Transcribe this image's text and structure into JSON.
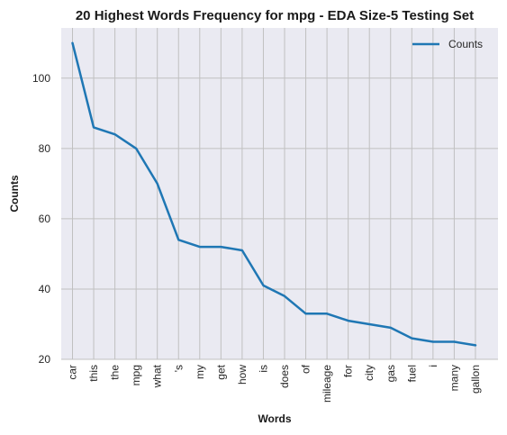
{
  "chart_data": {
    "type": "line",
    "title": "20 Highest Words Frequency for mpg - EDA Size-5 Testing Set",
    "xlabel": "Words",
    "ylabel": "Counts",
    "categories": [
      "car",
      "this",
      "the",
      "mpg",
      "what",
      "'s",
      "my",
      "get",
      "how",
      "is",
      "does",
      "of",
      "mileage",
      "for",
      "city",
      "gas",
      "fuel",
      "i",
      "many",
      "gallon"
    ],
    "series": [
      {
        "name": "Counts",
        "values": [
          110,
          86,
          84,
          80,
          70,
          54,
          52,
          52,
          51,
          41,
          38,
          33,
          33,
          31,
          30,
          29,
          26,
          25,
          25,
          24
        ]
      }
    ],
    "ylim": [
      20,
      114.3
    ],
    "yticks": [
      20,
      40,
      60,
      80,
      100
    ],
    "grid": true,
    "legend_position": "top-right",
    "colors": {
      "line": "#1f77b4",
      "background": "#eaeaf2",
      "grid": "#c0c0c0"
    }
  }
}
